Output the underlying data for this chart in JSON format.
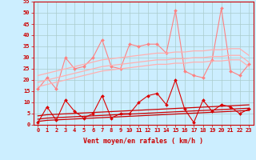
{
  "x": [
    0,
    1,
    2,
    3,
    4,
    5,
    6,
    7,
    8,
    9,
    10,
    11,
    12,
    13,
    14,
    15,
    16,
    17,
    18,
    19,
    20,
    21,
    22,
    23
  ],
  "series": [
    {
      "name": "dark_jagged",
      "color": "#DD0000",
      "alpha": 1.0,
      "lw": 0.8,
      "marker": "D",
      "markersize": 2.0,
      "y": [
        1,
        8,
        2,
        11,
        6,
        3,
        5,
        13,
        3,
        5,
        5,
        10,
        13,
        14,
        9,
        20,
        7,
        1,
        11,
        6,
        9,
        8,
        5,
        7
      ]
    },
    {
      "name": "dark_trend1",
      "color": "#CC0000",
      "alpha": 1.0,
      "lw": 0.9,
      "marker": null,
      "y": [
        1.5,
        2.0,
        2.2,
        2.4,
        2.6,
        2.8,
        3.0,
        3.2,
        3.4,
        3.6,
        3.8,
        4.0,
        4.2,
        4.4,
        4.6,
        4.8,
        5.0,
        5.2,
        5.4,
        5.6,
        5.8,
        6.0,
        6.2,
        6.4
      ]
    },
    {
      "name": "dark_trend2",
      "color": "#CC0000",
      "alpha": 1.0,
      "lw": 0.9,
      "marker": null,
      "y": [
        2.5,
        3.0,
        3.2,
        3.4,
        3.6,
        3.8,
        4.0,
        4.2,
        4.4,
        4.6,
        4.8,
        5.0,
        5.2,
        5.4,
        5.6,
        5.8,
        6.0,
        6.2,
        6.4,
        6.6,
        6.8,
        7.0,
        7.2,
        7.4
      ]
    },
    {
      "name": "dark_trend3",
      "color": "#CC0000",
      "alpha": 1.0,
      "lw": 0.9,
      "marker": null,
      "y": [
        4.0,
        4.5,
        4.7,
        4.9,
        5.1,
        5.3,
        5.5,
        5.7,
        5.9,
        6.1,
        6.3,
        6.5,
        6.7,
        6.9,
        7.1,
        7.3,
        7.5,
        7.7,
        7.9,
        8.1,
        8.3,
        8.5,
        8.7,
        8.9
      ]
    },
    {
      "name": "light_jagged",
      "color": "#FF8080",
      "alpha": 1.0,
      "lw": 0.8,
      "marker": "D",
      "markersize": 2.0,
      "y": [
        16,
        21,
        16,
        30,
        25,
        26,
        30,
        38,
        26,
        25,
        36,
        35,
        36,
        36,
        32,
        51,
        24,
        22,
        21,
        29,
        52,
        24,
        22,
        27
      ]
    },
    {
      "name": "light_trend1",
      "color": "#FFB0B0",
      "alpha": 1.0,
      "lw": 0.9,
      "marker": null,
      "y": [
        17,
        18,
        19,
        20,
        21,
        22,
        23,
        24,
        24.5,
        25,
        25.5,
        26,
        26.5,
        27,
        27,
        27.5,
        27.5,
        28,
        28,
        28.5,
        28.5,
        29,
        29,
        26
      ]
    },
    {
      "name": "light_trend2",
      "color": "#FFB0B0",
      "alpha": 1.0,
      "lw": 0.9,
      "marker": null,
      "y": [
        19,
        20,
        21,
        22,
        23,
        24,
        25,
        26,
        26.5,
        27,
        27.5,
        28,
        28.5,
        29,
        29,
        29.5,
        29.5,
        30,
        30,
        30.5,
        30.5,
        31,
        31,
        28
      ]
    },
    {
      "name": "light_trend3",
      "color": "#FFB0B0",
      "alpha": 1.0,
      "lw": 0.9,
      "marker": null,
      "y": [
        22,
        23,
        24,
        25,
        26,
        27,
        28,
        29,
        29.5,
        30,
        30.5,
        31,
        31.5,
        32,
        32,
        32.5,
        32.5,
        33,
        33,
        33.5,
        33.5,
        34,
        34,
        31
      ]
    }
  ],
  "xlim_min": -0.5,
  "xlim_max": 23.5,
  "ylim_min": 0,
  "ylim_max": 55,
  "yticks": [
    0,
    5,
    10,
    15,
    20,
    25,
    30,
    35,
    40,
    45,
    50,
    55
  ],
  "xticks": [
    0,
    1,
    2,
    3,
    4,
    5,
    6,
    7,
    8,
    9,
    10,
    11,
    12,
    13,
    14,
    15,
    16,
    17,
    18,
    19,
    20,
    21,
    22,
    23
  ],
  "xlabel": "Vent moyen/en rafales ( km/h )",
  "bg_color": "#cceeff",
  "grid_color": "#aacccc",
  "spine_color": "#CC0000",
  "label_color": "#CC0000",
  "tick_color": "#CC0000",
  "tick_fontsize": 5.0,
  "xlabel_fontsize": 6.0
}
